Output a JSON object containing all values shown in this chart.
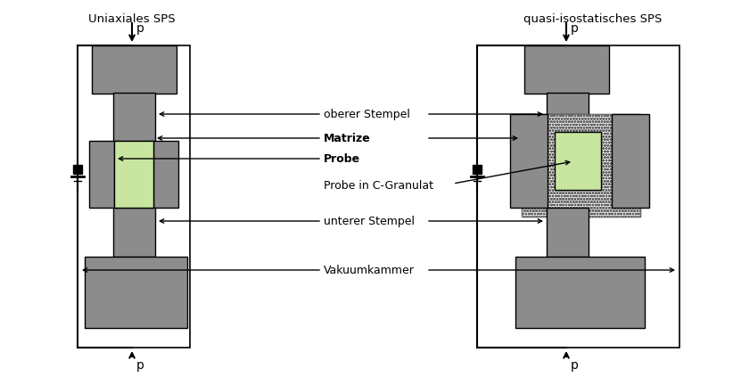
{
  "title_left": "Uniaxiales SPS",
  "title_right": "quasi-isostatisches SPS",
  "gray": "#8c8c8c",
  "green": "#c8e6a0",
  "black": "#000000",
  "white": "#ffffff",
  "label_oberer": "oberer Stempel",
  "label_matrize": "Matrize",
  "label_probe": "Probe",
  "label_probe_granulat": "Probe in C-Granulat",
  "label_unterer": "unterer Stempel",
  "label_vakuum": "Vakuumkammer",
  "figsize": [
    8.22,
    4.23
  ],
  "dpi": 100
}
